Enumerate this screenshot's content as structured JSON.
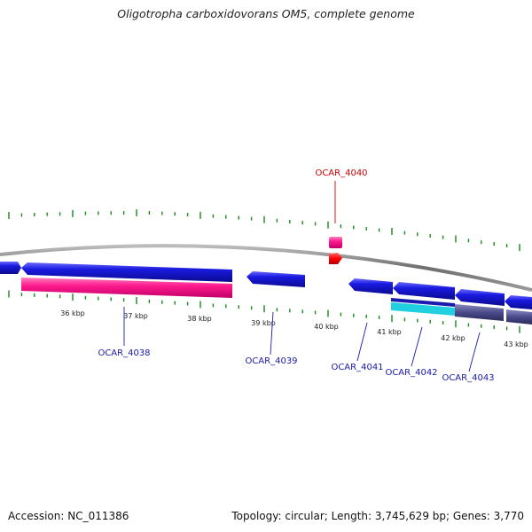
{
  "title": "Oligotropha carboxidovorans OM5, complete genome",
  "footer": {
    "accession": "Accession: NC_011386",
    "summary": "Topology: circular; Length: 3,745,629 bp; Genes: 3,770"
  },
  "colors": {
    "backbone": "#8c8c8c",
    "tick": "#1a8a1a",
    "forward_gene": "#1414d2",
    "cds_pink": "#ff1a8c",
    "label_blue": "#1a1aaa",
    "label_red": "#cc0000",
    "slate": "#4a4a8a",
    "cyan": "#20d0e0"
  },
  "kbp_ticks": [
    {
      "kbp": 36,
      "label": "36 kbp"
    },
    {
      "kbp": 37,
      "label": "37 kbp"
    },
    {
      "kbp": 38,
      "label": "38 kbp"
    },
    {
      "kbp": 39,
      "label": "39 kbp"
    },
    {
      "kbp": 40,
      "label": "40 kbp"
    },
    {
      "kbp": 41,
      "label": "41 kbp"
    },
    {
      "kbp": 42,
      "label": "42 kbp"
    },
    {
      "kbp": 43,
      "label": "43 kbp"
    }
  ],
  "genes": [
    {
      "id": "OCAR_4038",
      "label": "OCAR_4038",
      "color": "label_blue"
    },
    {
      "id": "OCAR_4039",
      "label": "OCAR_4039",
      "color": "label_blue"
    },
    {
      "id": "OCAR_4040",
      "label": "OCAR_4040",
      "color": "label_red"
    },
    {
      "id": "OCAR_4041",
      "label": "OCAR_4041",
      "color": "label_blue"
    },
    {
      "id": "OCAR_4042",
      "label": "OCAR_4042",
      "color": "label_blue"
    },
    {
      "id": "OCAR_4043",
      "label": "OCAR_4043",
      "color": "label_blue"
    }
  ]
}
